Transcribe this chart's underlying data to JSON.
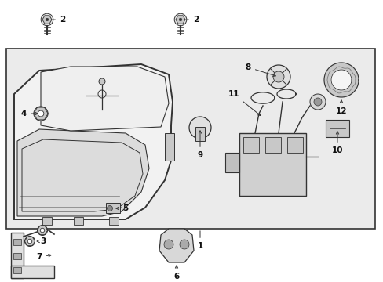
{
  "white": "#ffffff",
  "light_gray": "#e8e8e8",
  "line_color": "#333333",
  "text_color": "#111111",
  "part_gray": "#c8c8c8",
  "figsize": [
    4.89,
    3.6
  ],
  "dpi": 100
}
